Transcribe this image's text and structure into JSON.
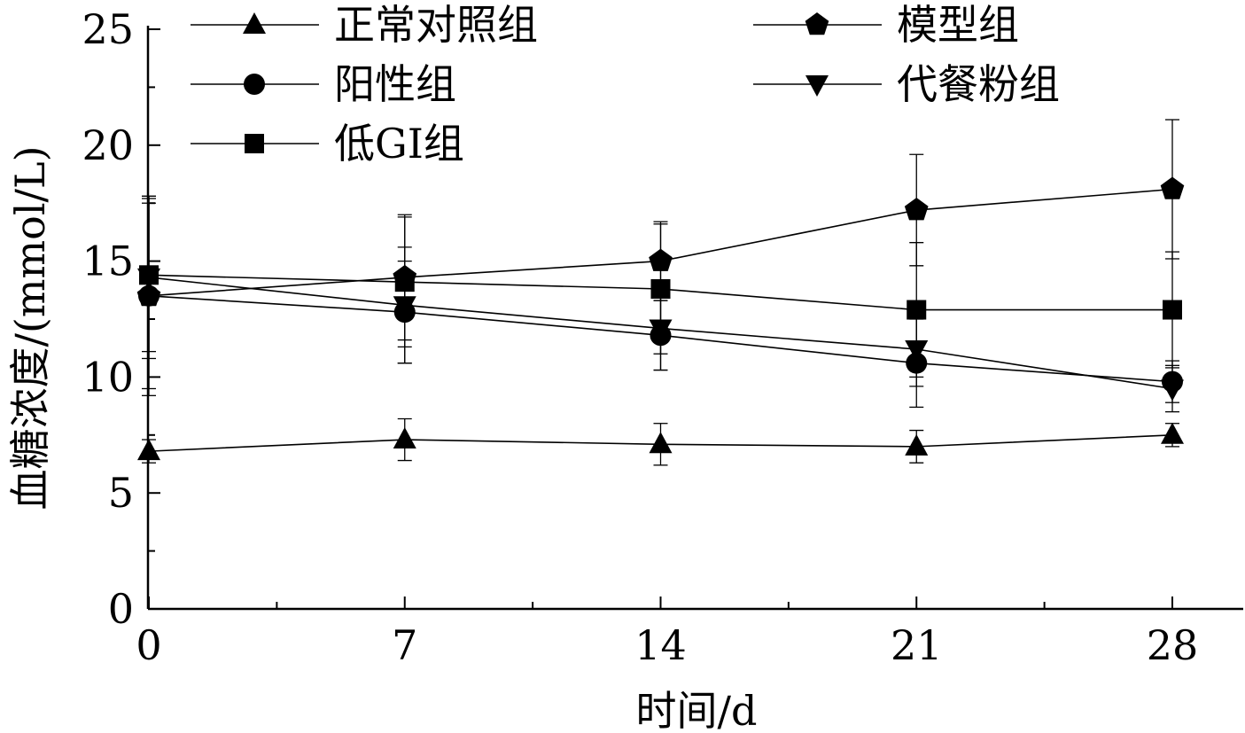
{
  "chart_data": {
    "type": "line",
    "title": "",
    "xlabel": "时间/d",
    "ylabel": "血糖浓度/(mmol/L)",
    "x": [
      0,
      7,
      14,
      21,
      28
    ],
    "xlim": [
      0,
      30
    ],
    "ylim": [
      0,
      25
    ],
    "x_ticks": [
      "0",
      "7",
      "14",
      "21",
      "28"
    ],
    "y_ticks": [
      "0",
      "5",
      "10",
      "15",
      "20",
      "25"
    ],
    "grid": false,
    "legend_position": "top",
    "series": [
      {
        "name": "正常对照组",
        "marker": "triangle-up",
        "values": [
          6.8,
          7.3,
          7.1,
          7.0,
          7.5
        ],
        "errors": [
          0.5,
          0.9,
          0.9,
          0.7,
          0.5
        ]
      },
      {
        "name": "模型组",
        "marker": "pentagon",
        "values": [
          13.5,
          14.3,
          15.0,
          17.2,
          18.1
        ],
        "errors": [
          4.3,
          2.7,
          1.7,
          2.4,
          3.0
        ]
      },
      {
        "name": "阳性组",
        "marker": "circle",
        "values": [
          13.5,
          12.8,
          11.8,
          10.6,
          9.8
        ],
        "errors": [
          4.0,
          2.2,
          1.5,
          1.9,
          0.9
        ]
      },
      {
        "name": "代餐粉组",
        "marker": "triangle-down",
        "values": [
          14.3,
          13.1,
          12.1,
          11.2,
          9.5
        ],
        "errors": [
          3.5,
          2.5,
          1.8,
          1.6,
          1.0
        ]
      },
      {
        "name": "低GI组",
        "marker": "square",
        "values": [
          14.4,
          14.1,
          13.8,
          12.9,
          12.9
        ],
        "errors": [
          3.3,
          2.8,
          2.8,
          2.9,
          2.5
        ]
      }
    ]
  }
}
